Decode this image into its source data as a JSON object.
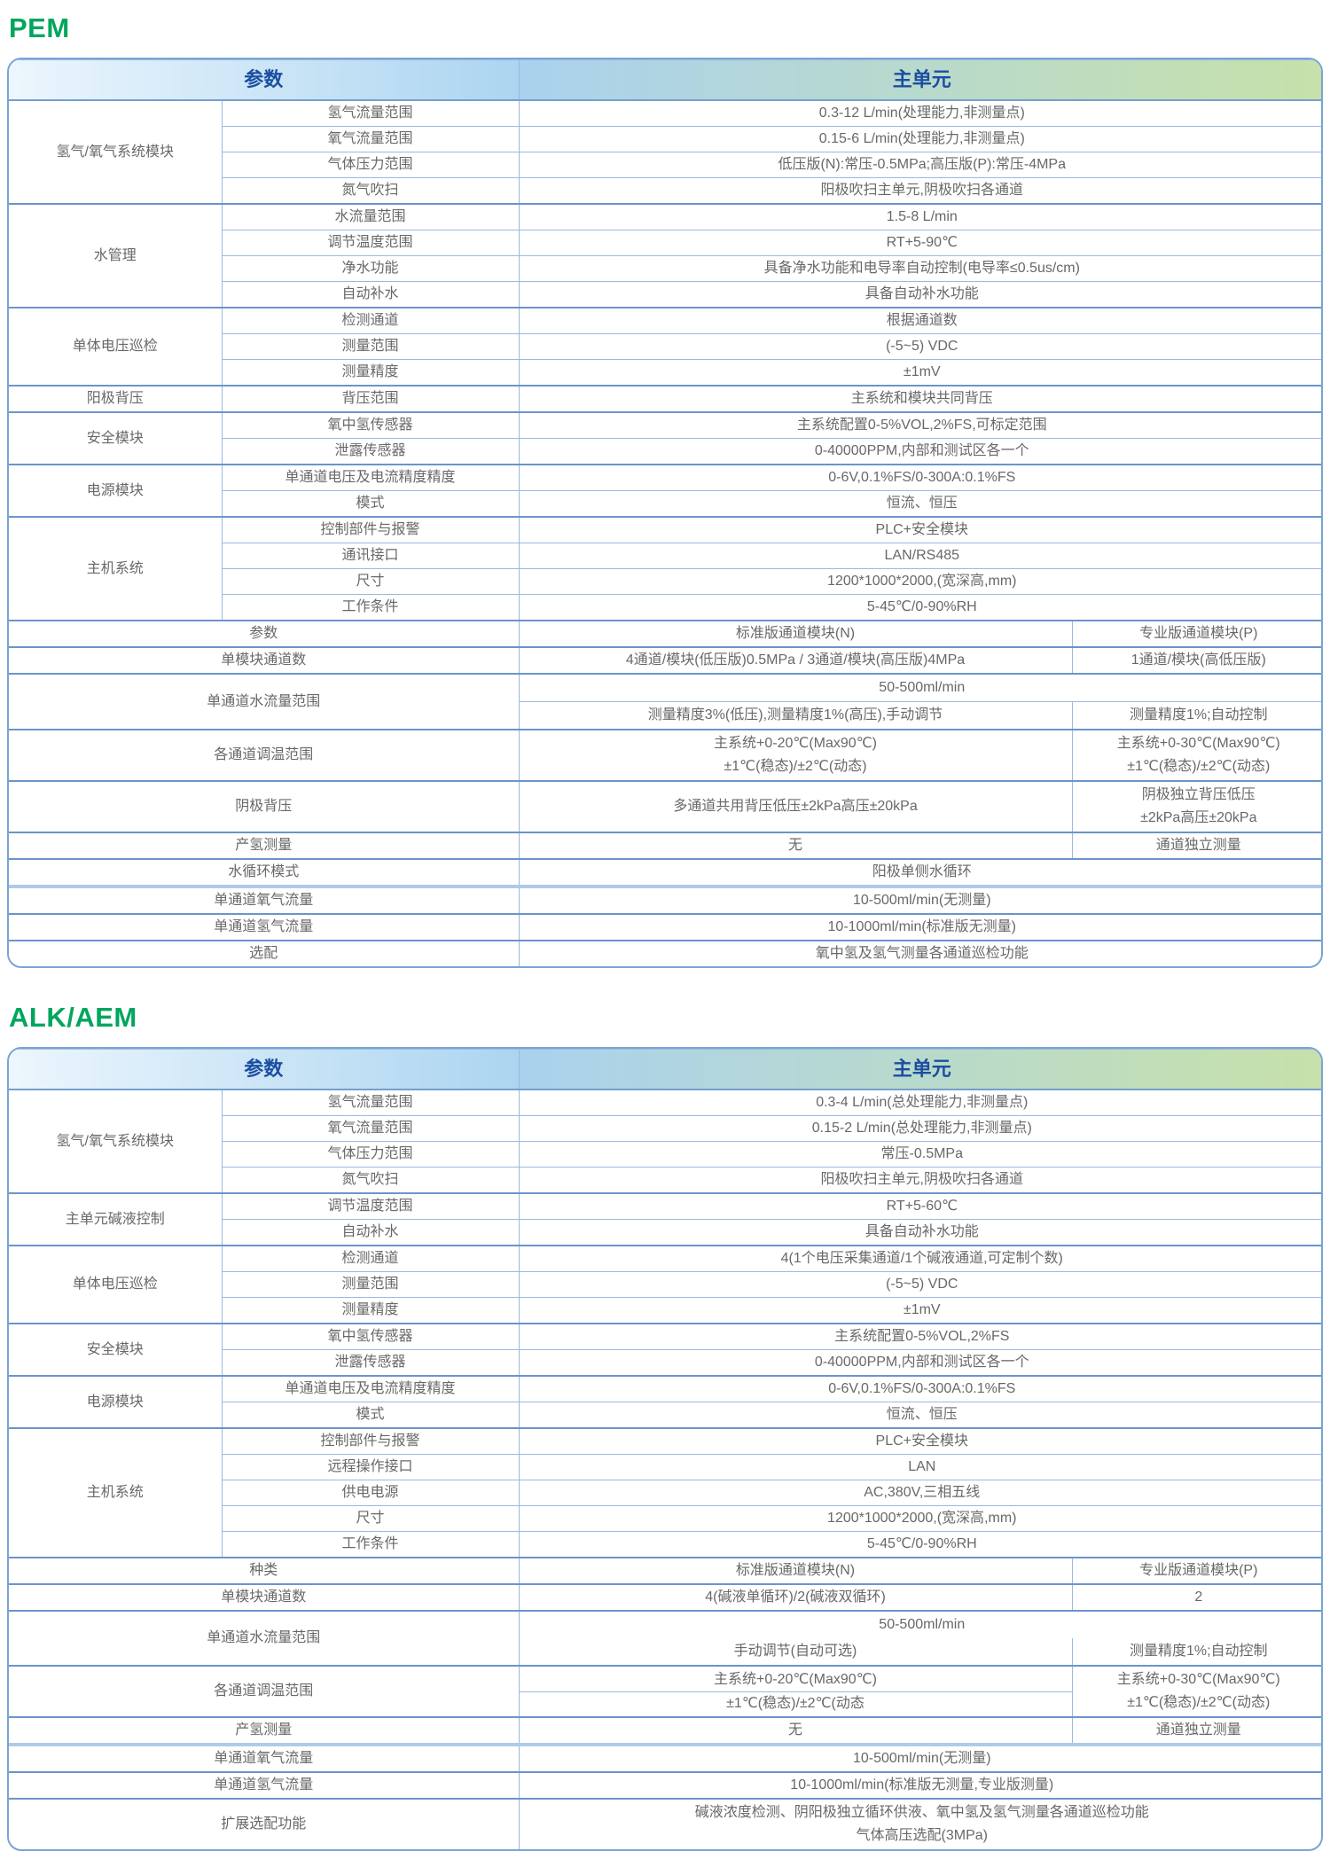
{
  "colors": {
    "title_green": "#00A65D",
    "header_text_blue": "#1B4EA2",
    "body_text": "#686868",
    "border_strong": "#6B94CC",
    "border_light": "#9BB9E0",
    "outer_border": "#79A5D4",
    "header_gradient": [
      "#ECF6FD",
      "#ACD5F0",
      "#C7E1AA"
    ]
  },
  "tables": [
    {
      "id": "pem",
      "title": "PEM",
      "header": {
        "param_col": "参数",
        "main_col": "主单元"
      },
      "groups": [
        {
          "category": "氢气/氧气系统模块",
          "rows": [
            {
              "param": "氢气流量范围",
              "value": "0.3-12 L/min(处理能力,非测量点)"
            },
            {
              "param": "氧气流量范围",
              "value": "0.15-6 L/min(处理能力,非测量点)"
            },
            {
              "param": "气体压力范围",
              "value": "低压版(N):常压-0.5MPa;高压版(P):常压-4MPa"
            },
            {
              "param": "氮气吹扫",
              "value": "阳极吹扫主单元,阴极吹扫各通道"
            }
          ]
        },
        {
          "category": "水管理",
          "rows": [
            {
              "param": "水流量范围",
              "value": "1.5-8 L/min"
            },
            {
              "param": "调节温度范围",
              "value": "RT+5-90℃"
            },
            {
              "param": "净水功能",
              "value": "具备净水功能和电导率自动控制(电导率≤0.5us/cm)"
            },
            {
              "param": "自动补水",
              "value": "具备自动补水功能"
            }
          ]
        },
        {
          "category": "单体电压巡检",
          "rows": [
            {
              "param": "检测通道",
              "value": "根据通道数"
            },
            {
              "param": "测量范围",
              "value": "(-5~5) VDC"
            },
            {
              "param": "测量精度",
              "value": "±1mV"
            }
          ]
        },
        {
          "category": "阳极背压",
          "rows": [
            {
              "param": "背压范围",
              "value": "主系统和模块共同背压"
            }
          ]
        },
        {
          "category": "安全模块",
          "rows": [
            {
              "param": "氧中氢传感器",
              "value": "主系统配置0-5%VOL,2%FS,可标定范围"
            },
            {
              "param": "泄露传感器",
              "value": "0-40000PPM,内部和测试区各一个"
            }
          ]
        },
        {
          "category": "电源模块",
          "rows": [
            {
              "param": "单通道电压及电流精度精度",
              "value": "0-6V,0.1%FS/0-300A:0.1%FS"
            },
            {
              "param": "模式",
              "value": "恒流、恒压"
            }
          ]
        },
        {
          "category": "主机系统",
          "rows": [
            {
              "param": "控制部件与报警",
              "value": "PLC+安全模块"
            },
            {
              "param": "通讯接口",
              "value": "LAN/RS485"
            },
            {
              "param": "尺寸",
              "value": "1200*1000*2000,(宽深高,mm)"
            },
            {
              "param": "工作条件",
              "value": "5-45℃/0-90%RH"
            }
          ]
        }
      ],
      "matrix": [
        {
          "type": "split",
          "label": "参数",
          "n": [
            "标准版通道模块(N)"
          ],
          "p": [
            "专业版通道模块(P)"
          ]
        },
        {
          "type": "split",
          "label": "单模块通道数",
          "n": [
            "4通道/模块(低压版)0.5MPa / 3通道/模块(高压版)4MPa"
          ],
          "p": [
            "1通道/模块(高低压版)"
          ]
        },
        {
          "type": "tworow",
          "label": "单通道水流量范围",
          "top": "50-500ml/min",
          "top_divider": true,
          "n": [
            "测量精度3%(低压),测量精度1%(高压),手动调节"
          ],
          "p": [
            "测量精度1%;自动控制"
          ]
        },
        {
          "type": "split",
          "label": "各通道调温范围",
          "tall": true,
          "n_divider": false,
          "n": [
            "主系统+0-20℃(Max90℃)",
            "±1℃(稳态)/±2℃(动态)"
          ],
          "p": [
            "主系统+0-30℃(Max90℃)",
            "±1℃(稳态)/±2℃(动态)"
          ]
        },
        {
          "type": "split",
          "label": "阴极背压",
          "tall": true,
          "n_divider": false,
          "n": [
            "多通道共用背压低压±2kPa高压±20kPa"
          ],
          "p": [
            "阴极独立背压低压",
            "±2kPa高压±20kPa"
          ]
        },
        {
          "type": "split",
          "label": "产氢测量",
          "n": [
            "无"
          ],
          "p": [
            "通道独立测量"
          ]
        },
        {
          "type": "merged",
          "label": "水循环模式",
          "value": [
            "阳极单侧水循环"
          ]
        },
        {
          "type": "merged",
          "label": "单通道氧气流量",
          "thick_top": true,
          "value": [
            "10-500ml/min(无测量)"
          ]
        },
        {
          "type": "merged",
          "label": "单通道氢气流量",
          "value": [
            "10-1000ml/min(标准版无测量)"
          ]
        },
        {
          "type": "merged",
          "label": "选配",
          "value": [
            "氧中氢及氢气测量各通道巡检功能"
          ]
        }
      ]
    },
    {
      "id": "alk",
      "title": "ALK/AEM",
      "header": {
        "param_col": "参数",
        "main_col": "主单元"
      },
      "groups": [
        {
          "category": "氢气/氧气系统模块",
          "rows": [
            {
              "param": "氢气流量范围",
              "value": "0.3-4 L/min(总处理能力,非测量点)"
            },
            {
              "param": "氧气流量范围",
              "value": "0.15-2 L/min(总处理能力,非测量点)"
            },
            {
              "param": "气体压力范围",
              "value": "常压-0.5MPa"
            },
            {
              "param": "氮气吹扫",
              "value": "阳极吹扫主单元,阴极吹扫各通道"
            }
          ]
        },
        {
          "category": "主单元碱液控制",
          "rows": [
            {
              "param": "调节温度范围",
              "value": "RT+5-60℃"
            },
            {
              "param": "自动补水",
              "value": "具备自动补水功能"
            }
          ]
        },
        {
          "category": "单体电压巡检",
          "rows": [
            {
              "param": "检测通道",
              "value": "4(1个电压采集通道/1个碱液通道,可定制个数)"
            },
            {
              "param": "测量范围",
              "value": "(-5~5) VDC"
            },
            {
              "param": "测量精度",
              "value": "±1mV"
            }
          ]
        },
        {
          "category": "安全模块",
          "rows": [
            {
              "param": "氧中氢传感器",
              "value": "主系统配置0-5%VOL,2%FS"
            },
            {
              "param": "泄露传感器",
              "value": "0-40000PPM,内部和测试区各一个"
            }
          ]
        },
        {
          "category": "电源模块",
          "rows": [
            {
              "param": "单通道电压及电流精度精度",
              "value": "0-6V,0.1%FS/0-300A:0.1%FS"
            },
            {
              "param": "模式",
              "value": "恒流、恒压"
            }
          ]
        },
        {
          "category": "主机系统",
          "rows": [
            {
              "param": "控制部件与报警",
              "value": "PLC+安全模块"
            },
            {
              "param": "远程操作接口",
              "value": "LAN"
            },
            {
              "param": "供电电源",
              "value": "AC,380V,三相五线"
            },
            {
              "param": "尺寸",
              "value": "1200*1000*2000,(宽深高,mm)"
            },
            {
              "param": "工作条件",
              "value": "5-45℃/0-90%RH"
            }
          ]
        }
      ],
      "matrix": [
        {
          "type": "split",
          "label": "种类",
          "n": [
            "标准版通道模块(N)"
          ],
          "p": [
            "专业版通道模块(P)"
          ]
        },
        {
          "type": "split",
          "label": "单模块通道数",
          "n": [
            "4(碱液单循环)/2(碱液双循环)"
          ],
          "p": [
            "2"
          ]
        },
        {
          "type": "tworow",
          "label": "单通道水流量范围",
          "top": "50-500ml/min",
          "top_divider": false,
          "n": [
            "手动调节(自动可选)"
          ],
          "p": [
            "测量精度1%;自动控制"
          ]
        },
        {
          "type": "split",
          "label": "各通道调温范围",
          "tall": true,
          "n_divider": true,
          "n": [
            "主系统+0-20℃(Max90℃)",
            "±1℃(稳态)/±2℃(动态"
          ],
          "p": [
            "主系统+0-30℃(Max90℃)",
            "±1℃(稳态)/±2℃(动态)"
          ]
        },
        {
          "type": "split",
          "label": "产氢测量",
          "n": [
            "无"
          ],
          "p": [
            "通道独立测量"
          ]
        },
        {
          "type": "merged",
          "label": "单通道氧气流量",
          "thick_top": true,
          "value": [
            "10-500ml/min(无测量)"
          ]
        },
        {
          "type": "merged",
          "label": "单通道氢气流量",
          "value": [
            "10-1000ml/min(标准版无测量,专业版测量)"
          ]
        },
        {
          "type": "merged",
          "label": "扩展选配功能",
          "tall": true,
          "value": [
            "碱液浓度检测、阴阳极独立循环供液、氧中氢及氢气测量各通道巡检功能",
            "气体高压选配(3MPa)"
          ]
        }
      ]
    }
  ]
}
